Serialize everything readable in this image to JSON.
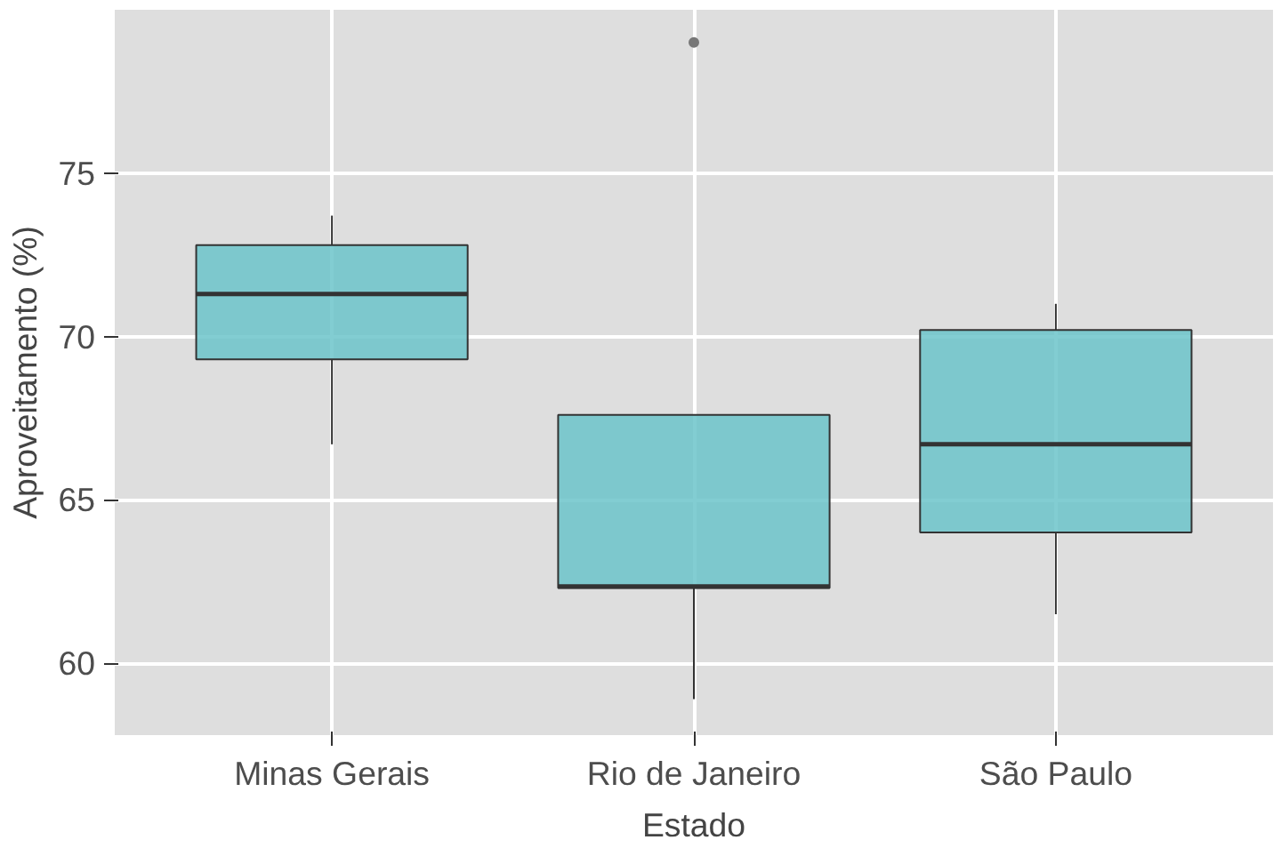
{
  "chart_data": {
    "type": "box",
    "xlabel": "Estado",
    "ylabel": "Aproveitamento (%)",
    "categories": [
      "Minas Gerais",
      "Rio de Janeiro",
      "São Paulo"
    ],
    "color": "#6cc4ca",
    "boxes": [
      {
        "low": 66.7,
        "q1": 69.3,
        "median": 71.3,
        "q3": 72.8,
        "high": 73.7
      },
      {
        "low": 58.9,
        "q1": 62.3,
        "median": 62.35,
        "q3": 67.6,
        "high": 67.6,
        "outliers": [
          79.0
        ]
      },
      {
        "low": 61.5,
        "q1": 64.0,
        "median": 66.7,
        "q3": 70.2,
        "high": 71.0
      }
    ],
    "ylim": [
      57.8,
      80.0
    ],
    "yticks": [
      60,
      65,
      70,
      75
    ],
    "grid": true
  }
}
